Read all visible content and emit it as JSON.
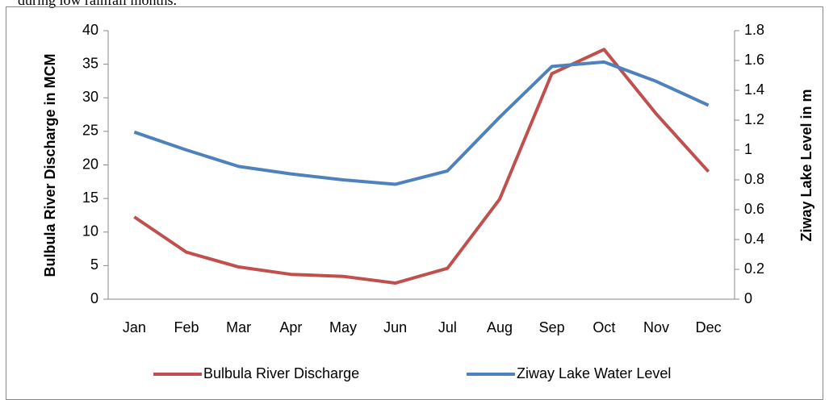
{
  "caption": "during low rainfall months.",
  "chart_data": {
    "type": "line",
    "categories": [
      "Jan",
      "Feb",
      "Mar",
      "Apr",
      "May",
      "Jun",
      "Jul",
      "Aug",
      "Sep",
      "Oct",
      "Nov",
      "Dec"
    ],
    "y_label": "Bulbula River Discharge in MCM",
    "y2_label": "Ziway Lake Level in m",
    "ylim": [
      0,
      40
    ],
    "yticks": [
      0,
      5,
      10,
      15,
      20,
      25,
      30,
      35,
      40
    ],
    "y2lim": [
      0,
      1.8
    ],
    "y2ticks": [
      0,
      0.2,
      0.4,
      0.6,
      0.8,
      1,
      1.2,
      1.4,
      1.6,
      1.8
    ],
    "legend": "bottom",
    "series": [
      {
        "name": "Bulbula River Discharge",
        "color": "#c0504d",
        "values": [
          12.25,
          7.0,
          4.8,
          3.7,
          3.4,
          2.4,
          4.6,
          14.9,
          33.6,
          37.2,
          27.6,
          19.0
        ]
      },
      {
        "name": "Ziway Lake Water Level",
        "color": "#4f81bd",
        "axis": "y2",
        "values": [
          1.12,
          1.0,
          0.89,
          0.84,
          0.8,
          0.77,
          0.86,
          1.22,
          1.56,
          1.59,
          1.46,
          1.3
        ]
      }
    ]
  }
}
